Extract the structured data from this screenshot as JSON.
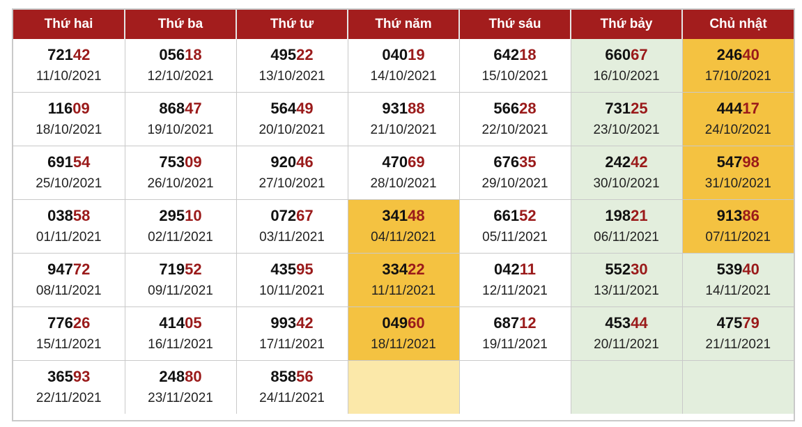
{
  "headers": [
    "Thứ hai",
    "Thứ ba",
    "Thứ tư",
    "Thứ năm",
    "Thứ sáu",
    "Thứ bảy",
    "Chủ nhật"
  ],
  "colors": {
    "header_bg": "#a31d1d",
    "tail_digits": "#9a1a1a",
    "highlight": "#f4c241",
    "highlight_light": "#fbe8a9",
    "weekend": "#e3eedd"
  },
  "rows": [
    [
      {
        "head": "721",
        "tail": "42",
        "date": "11/10/2021"
      },
      {
        "head": "056",
        "tail": "18",
        "date": "12/10/2021"
      },
      {
        "head": "495",
        "tail": "22",
        "date": "13/10/2021"
      },
      {
        "head": "040",
        "tail": "19",
        "date": "14/10/2021"
      },
      {
        "head": "642",
        "tail": "18",
        "date": "15/10/2021"
      },
      {
        "head": "660",
        "tail": "67",
        "date": "16/10/2021"
      },
      {
        "head": "246",
        "tail": "40",
        "date": "17/10/2021",
        "highlight": true
      }
    ],
    [
      {
        "head": "116",
        "tail": "09",
        "date": "18/10/2021"
      },
      {
        "head": "868",
        "tail": "47",
        "date": "19/10/2021"
      },
      {
        "head": "564",
        "tail": "49",
        "date": "20/10/2021"
      },
      {
        "head": "931",
        "tail": "88",
        "date": "21/10/2021"
      },
      {
        "head": "566",
        "tail": "28",
        "date": "22/10/2021"
      },
      {
        "head": "731",
        "tail": "25",
        "date": "23/10/2021"
      },
      {
        "head": "444",
        "tail": "17",
        "date": "24/10/2021",
        "highlight": true
      }
    ],
    [
      {
        "head": "691",
        "tail": "54",
        "date": "25/10/2021"
      },
      {
        "head": "753",
        "tail": "09",
        "date": "26/10/2021"
      },
      {
        "head": "920",
        "tail": "46",
        "date": "27/10/2021"
      },
      {
        "head": "470",
        "tail": "69",
        "date": "28/10/2021"
      },
      {
        "head": "676",
        "tail": "35",
        "date": "29/10/2021"
      },
      {
        "head": "242",
        "tail": "42",
        "date": "30/10/2021"
      },
      {
        "head": "547",
        "tail": "98",
        "date": "31/10/2021",
        "highlight": true
      }
    ],
    [
      {
        "head": "038",
        "tail": "58",
        "date": "01/11/2021"
      },
      {
        "head": "295",
        "tail": "10",
        "date": "02/11/2021"
      },
      {
        "head": "072",
        "tail": "67",
        "date": "03/11/2021"
      },
      {
        "head": "341",
        "tail": "48",
        "date": "04/11/2021",
        "highlight": true
      },
      {
        "head": "661",
        "tail": "52",
        "date": "05/11/2021"
      },
      {
        "head": "198",
        "tail": "21",
        "date": "06/11/2021"
      },
      {
        "head": "913",
        "tail": "86",
        "date": "07/11/2021",
        "highlight": true
      }
    ],
    [
      {
        "head": "947",
        "tail": "72",
        "date": "08/11/2021"
      },
      {
        "head": "719",
        "tail": "52",
        "date": "09/11/2021"
      },
      {
        "head": "435",
        "tail": "95",
        "date": "10/11/2021"
      },
      {
        "head": "334",
        "tail": "22",
        "date": "11/11/2021",
        "highlight": true
      },
      {
        "head": "042",
        "tail": "11",
        "date": "12/11/2021"
      },
      {
        "head": "552",
        "tail": "30",
        "date": "13/11/2021"
      },
      {
        "head": "539",
        "tail": "40",
        "date": "14/11/2021"
      }
    ],
    [
      {
        "head": "776",
        "tail": "26",
        "date": "15/11/2021"
      },
      {
        "head": "414",
        "tail": "05",
        "date": "16/11/2021"
      },
      {
        "head": "993",
        "tail": "42",
        "date": "17/11/2021"
      },
      {
        "head": "049",
        "tail": "60",
        "date": "18/11/2021",
        "highlight": true
      },
      {
        "head": "687",
        "tail": "12",
        "date": "19/11/2021"
      },
      {
        "head": "453",
        "tail": "44",
        "date": "20/11/2021"
      },
      {
        "head": "475",
        "tail": "79",
        "date": "21/11/2021"
      }
    ],
    [
      {
        "head": "365",
        "tail": "93",
        "date": "22/11/2021"
      },
      {
        "head": "248",
        "tail": "80",
        "date": "23/11/2021"
      },
      {
        "head": "858",
        "tail": "56",
        "date": "24/11/2021"
      },
      {
        "empty": true,
        "highlight_light": true
      },
      {
        "empty": true
      },
      {
        "empty": true
      },
      {
        "empty": true
      }
    ]
  ]
}
